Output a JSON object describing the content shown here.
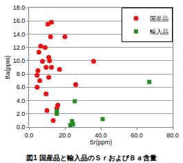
{
  "chart_data": {
    "type": "scatter",
    "title": "図1 国産品と輸入品のＳｒおよびＢａ含量",
    "x_label": "Sr(ppm)",
    "y_label": "Ba(ppm)",
    "series": [
      {
        "name": "国産品",
        "color": "#ee1111",
        "marker": "circle",
        "x": [
          10.5,
          12.5,
          12,
          20,
          6.5,
          9,
          5.5,
          11,
          11.5,
          7.5,
          36,
          9.5,
          12.5,
          5,
          17,
          4.5,
          11,
          6,
          4.5,
          26,
          9.5,
          16,
          15.5,
          10,
          13.5
        ],
        "values": [
          15.5,
          15.8,
          13.6,
          13.6,
          12.2,
          12,
          11.3,
          10.5,
          10,
          9.9,
          9.9,
          9,
          9,
          8.5,
          8.7,
          7.8,
          7.5,
          7,
          6,
          6.4,
          5,
          3.3,
          2.8,
          2.5,
          1
        ]
      },
      {
        "name": "輸入品",
        "color": "#228b22",
        "marker": "square",
        "x": [
          67,
          25.5,
          15.5,
          15.5,
          24,
          23,
          24.5,
          41
        ],
        "values": [
          6.8,
          3.9,
          2.4,
          2.0,
          0.9,
          0.3,
          0.4,
          1.2
        ]
      }
    ],
    "xlim": [
      0,
      80
    ],
    "xticks": [
      {
        "value": 0,
        "label": "0.0"
      },
      {
        "value": 20,
        "label": "20.0"
      },
      {
        "value": 40,
        "label": "40.0"
      },
      {
        "value": 60,
        "label": "60.0"
      },
      {
        "value": 80,
        "label": "80.0"
      }
    ],
    "ylim": [
      0,
      18
    ],
    "yticks": [
      {
        "value": 0,
        "label": "0.0"
      },
      {
        "value": 2,
        "label": "2.0"
      },
      {
        "value": 4,
        "label": "4.0"
      },
      {
        "value": 6,
        "label": "6.0"
      },
      {
        "value": 8,
        "label": "8.0"
      },
      {
        "value": 10,
        "label": "10.0"
      },
      {
        "value": 12,
        "label": "12.0"
      },
      {
        "value": 14,
        "label": "14.0"
      },
      {
        "value": 16,
        "label": "16.0"
      },
      {
        "value": 18,
        "label": "18.0"
      }
    ],
    "grid": true,
    "legend": "top right"
  }
}
